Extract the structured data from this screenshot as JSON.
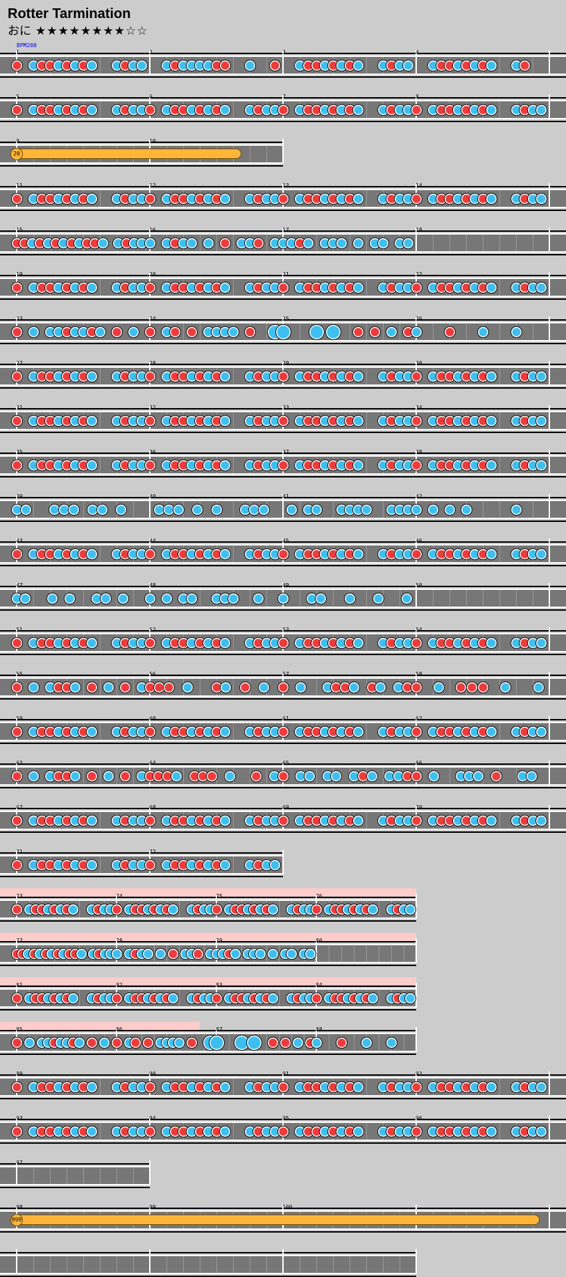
{
  "song": {
    "title": "Rotter Tarmination",
    "difficulty": "おに",
    "stars": "★★★★★★★★☆☆"
  },
  "colors": {
    "background": "#cccccc",
    "lane": "#777777",
    "don": "#ee3c3c",
    "ka": "#3fbff0",
    "balloon": "#ffb53a",
    "gogo": "#ffcccc"
  },
  "bpm_marker": "BPM200",
  "balloons": [
    {
      "row": 2,
      "hits": "20"
    },
    {
      "row": 26,
      "hits": "999"
    }
  ],
  "measure_labels": [
    "1",
    "2",
    "3",
    "4",
    "5",
    "6",
    "7",
    "8",
    "9",
    "10",
    "11",
    "12",
    "13",
    "14",
    "15",
    "16",
    "17",
    "18",
    "19",
    "20",
    "21",
    "22",
    "23",
    "24",
    "25",
    "26",
    "27",
    "28",
    "29",
    "30",
    "31",
    "32",
    "33",
    "34",
    "35",
    "36",
    "37",
    "38",
    "39",
    "40",
    "41",
    "42",
    "43",
    "44",
    "45",
    "46",
    "47",
    "48",
    "49",
    "50",
    "51",
    "52",
    "53",
    "54",
    "55",
    "56",
    "57",
    "58",
    "59",
    "60",
    "61",
    "62",
    "63",
    "64",
    "65",
    "66",
    "67",
    "68",
    "69",
    "70",
    "71",
    "72",
    "73",
    "74",
    "75",
    "76",
    "77",
    "78",
    "79",
    "80",
    "81",
    "82",
    "83",
    "84",
    "85",
    "86",
    "87",
    "88",
    "89",
    "90",
    "91",
    "92",
    "93",
    "94",
    "95",
    "96",
    "97",
    "98",
    "99",
    "100"
  ]
}
